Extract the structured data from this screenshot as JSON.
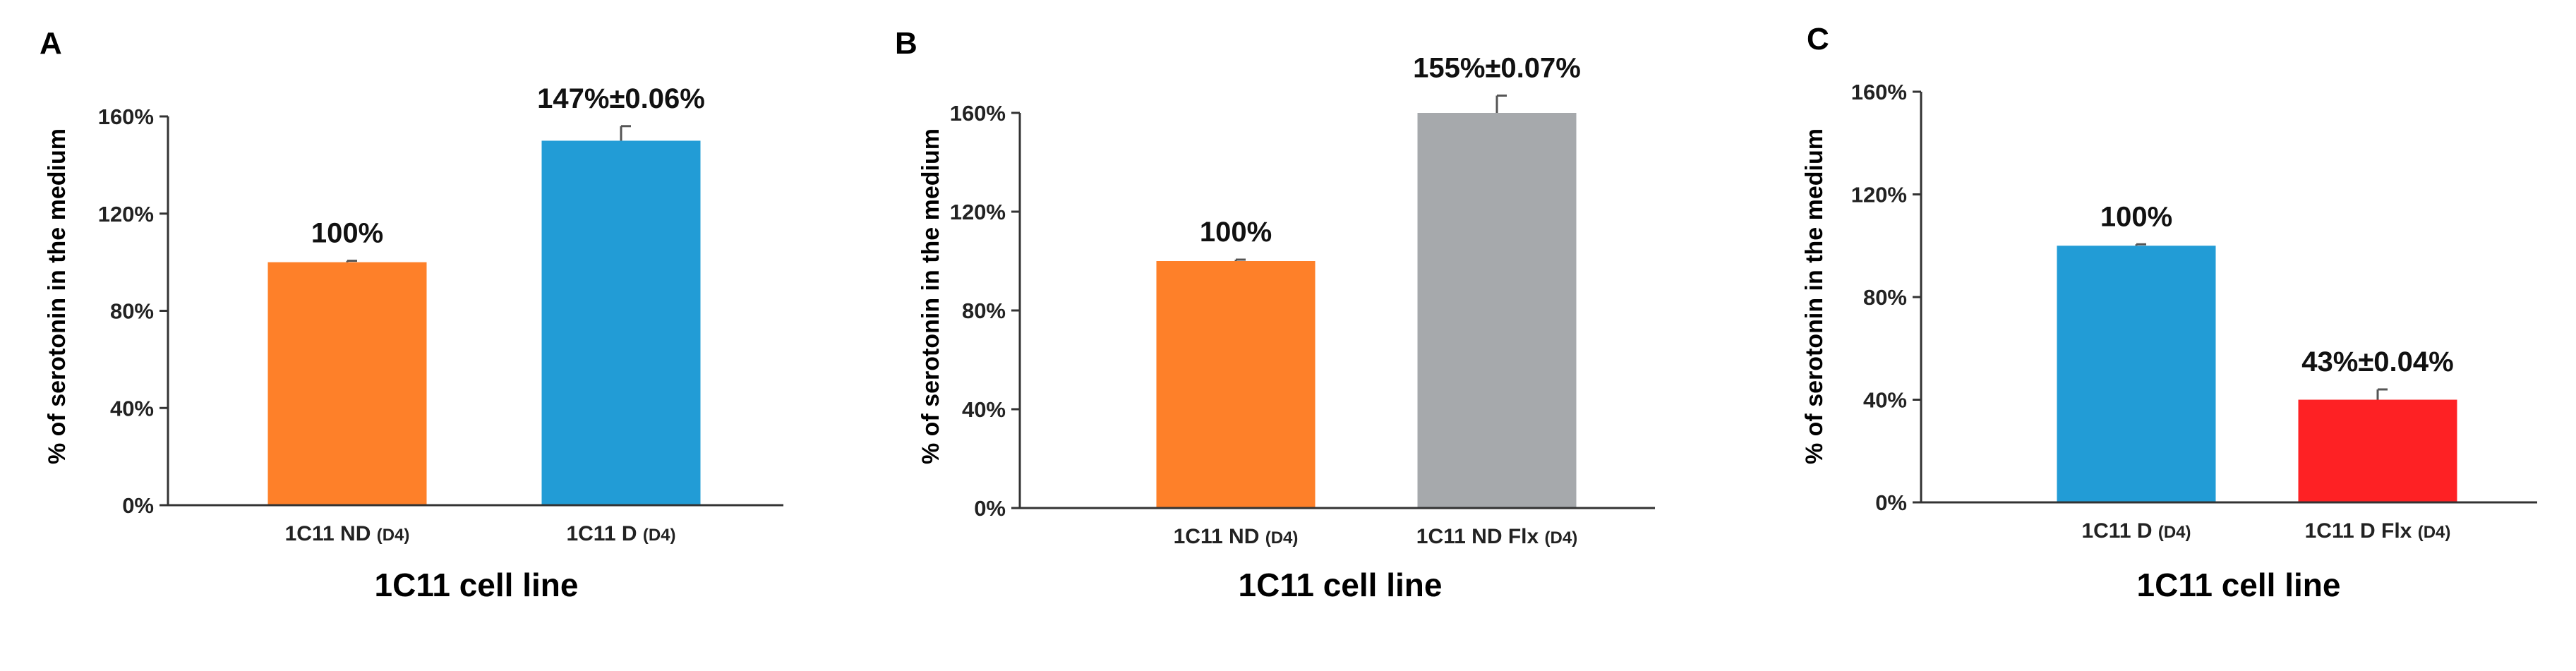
{
  "chart_data": [
    {
      "type": "bar",
      "panel_label": "A",
      "categories": [
        "1C11 ND",
        "1C11 D"
      ],
      "category_suffix": [
        "(D4)",
        "(D4)"
      ],
      "values": [
        1.0,
        1.5
      ],
      "errors": [
        0.0,
        0.06
      ],
      "data_labels": [
        "100%",
        "147%±0.06%"
      ],
      "colors": [
        "#fe8029",
        "#229cd6"
      ],
      "xlabel": "1C11 cell line",
      "ylabel": "% of serotonin in the medium",
      "ylim": [
        0,
        1.6
      ],
      "yticks": [
        0,
        0.4,
        0.8,
        1.2,
        1.6
      ],
      "ytick_labels": [
        "0%",
        "40%",
        "80%",
        "120%",
        "160%"
      ],
      "grid": false
    },
    {
      "type": "bar",
      "panel_label": "B",
      "categories": [
        "1C11 ND",
        "1C11 ND Flx"
      ],
      "category_suffix": [
        "(D4)",
        "(D4)"
      ],
      "values": [
        1.0,
        1.6
      ],
      "errors": [
        0.0,
        0.07
      ],
      "data_labels": [
        "100%",
        "155%±0.07%"
      ],
      "colors": [
        "#fe8029",
        "#a6a9ac"
      ],
      "xlabel": "1C11 cell line",
      "ylabel": "% of serotonin in the medium",
      "ylim": [
        0,
        1.6
      ],
      "yticks": [
        0,
        0.4,
        0.8,
        1.2,
        1.6
      ],
      "ytick_labels": [
        "0%",
        "40%",
        "80%",
        "120%",
        "160%"
      ],
      "grid": false
    },
    {
      "type": "bar",
      "panel_label": "C",
      "categories": [
        "1C11 D",
        "1C11 D Flx"
      ],
      "category_suffix": [
        "(D4)",
        "(D4)"
      ],
      "values": [
        1.0,
        0.4
      ],
      "errors": [
        0.0,
        0.04
      ],
      "data_labels": [
        "100%",
        "43%±0.04%"
      ],
      "colors": [
        "#229cd6",
        "#fe2124"
      ],
      "xlabel": "1C11 cell line",
      "ylabel": "% of serotonin in the medium",
      "ylim": [
        0,
        1.6
      ],
      "yticks": [
        0,
        0.4,
        0.8,
        1.2,
        1.6
      ],
      "ytick_labels": [
        "0%",
        "40%",
        "80%",
        "120%",
        "160%"
      ],
      "grid": false
    }
  ]
}
